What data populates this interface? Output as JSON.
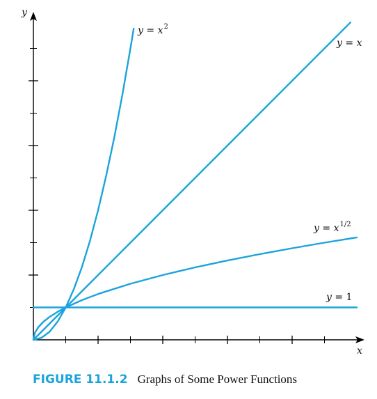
{
  "chart_data": {
    "type": "line",
    "title": "",
    "xlabel": "x",
    "ylabel": "y",
    "xlim": [
      0,
      9.7
    ],
    "ylim": [
      0,
      9.7
    ],
    "x_ticks": [
      1,
      2,
      3,
      4,
      5,
      6,
      7,
      8,
      9
    ],
    "y_ticks": [
      1,
      2,
      3,
      4,
      5,
      6,
      7,
      8,
      9
    ],
    "grid": false,
    "series": [
      {
        "name": "y = 1",
        "label_parts": {
          "base": "y = 1",
          "sup": ""
        },
        "x": [
          0,
          10
        ],
        "y": [
          1,
          1
        ]
      },
      {
        "name": "y = x",
        "label_parts": {
          "base": "y = x",
          "sup": ""
        },
        "x": [
          0,
          1,
          2,
          3,
          4,
          5,
          6,
          7,
          8,
          9.8
        ],
        "y": [
          0,
          1,
          2,
          3,
          4,
          5,
          6,
          7,
          8,
          9.8
        ]
      },
      {
        "name": "y = x^2",
        "label_parts": {
          "base": "y = x",
          "sup": "2"
        },
        "x": [
          0,
          0.25,
          0.5,
          0.75,
          1,
          1.25,
          1.5,
          1.75,
          2,
          2.25,
          2.5,
          2.75,
          3,
          3.1
        ],
        "y": [
          0,
          0.0625,
          0.25,
          0.5625,
          1,
          1.5625,
          2.25,
          3.0625,
          4,
          5.0625,
          6.25,
          7.5625,
          9,
          9.61
        ]
      },
      {
        "name": "y = x^1/2",
        "label_parts": {
          "base": "y = x",
          "sup": "1/2"
        },
        "x": [
          0,
          0.05,
          0.15,
          0.3,
          0.5,
          0.75,
          1,
          1.5,
          2,
          3,
          4,
          5,
          6,
          7,
          8,
          9,
          10
        ],
        "y": [
          0,
          0.224,
          0.387,
          0.548,
          0.707,
          0.866,
          1,
          1.225,
          1.414,
          1.732,
          2,
          2.236,
          2.449,
          2.646,
          2.828,
          3,
          3.162
        ]
      }
    ],
    "color": "#1ba3dc"
  },
  "caption": {
    "figure_label": "FIGURE 11.1.2",
    "text": "Graphs of Some Power Functions"
  }
}
